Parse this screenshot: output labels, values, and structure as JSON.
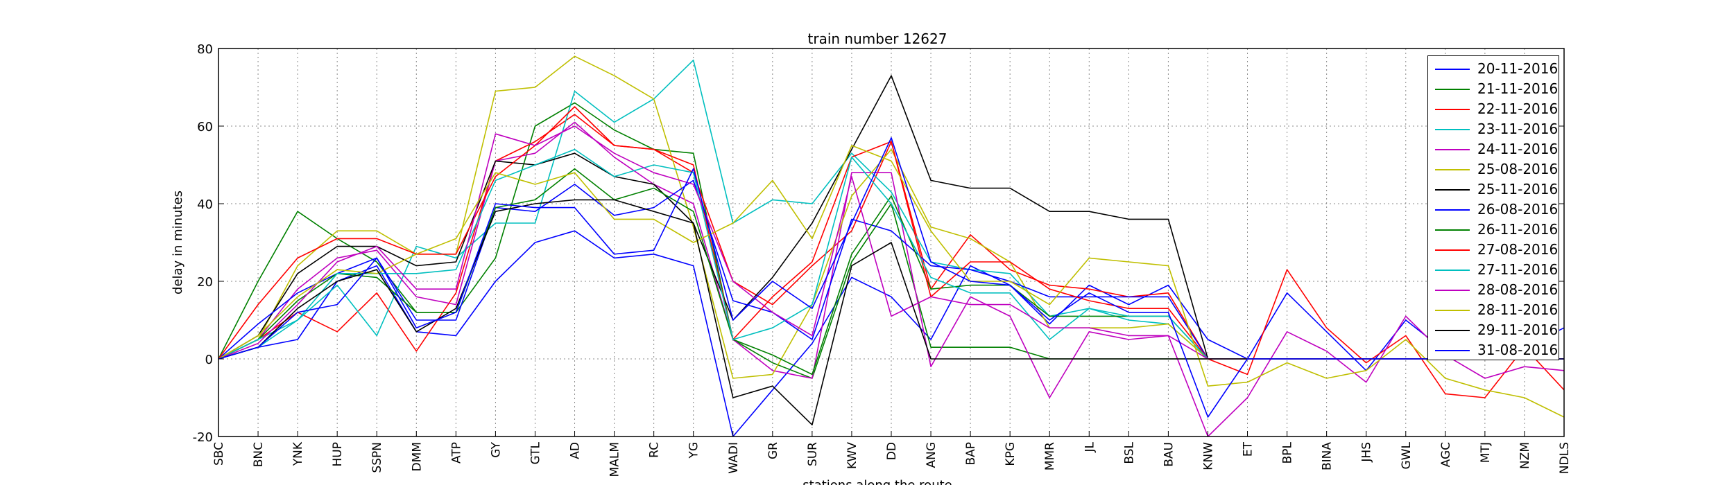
{
  "chart_data": {
    "type": "line",
    "title": "train number 12627",
    "xlabel": "stations along the route",
    "ylabel": "delay in minutes",
    "ylim": [
      -20,
      80
    ],
    "yticks": [
      -20,
      0,
      20,
      40,
      60,
      80
    ],
    "grid": true,
    "legend_position": "top-right",
    "categories": [
      "SBC",
      "BNC",
      "YNK",
      "HUP",
      "SSPN",
      "DMM",
      "ATP",
      "GY",
      "GTL",
      "AD",
      "MALM",
      "RC",
      "YG",
      "WADI",
      "GR",
      "SUR",
      "KWV",
      "DD",
      "ANG",
      "BAP",
      "KPG",
      "MMR",
      "JL",
      "BSL",
      "BAU",
      "KNW",
      "ET",
      "BPL",
      "BINA",
      "JHS",
      "GWL",
      "AGC",
      "MTJ",
      "NZM",
      "NDLS"
    ],
    "series": [
      {
        "name": "20-11-2016",
        "color": "#0000ff",
        "values": [
          0,
          3,
          5,
          20,
          24,
          7,
          6,
          20,
          30,
          33,
          26,
          27,
          24,
          -20,
          -8,
          4,
          21,
          16,
          5,
          24,
          19,
          9,
          19,
          14,
          19,
          5,
          0,
          17,
          7,
          -3,
          10,
          2,
          3,
          3,
          8
        ]
      },
      {
        "name": "21-11-2016",
        "color": "#008000",
        "values": [
          0,
          20,
          38,
          31,
          25,
          12,
          12,
          26,
          60,
          66,
          59,
          54,
          53,
          5,
          -1,
          -5,
          25,
          40,
          3,
          3,
          3,
          0,
          0,
          0,
          0,
          0,
          0,
          0,
          0,
          0,
          0,
          0,
          0,
          0,
          0
        ]
      },
      {
        "name": "22-11-2016",
        "color": "#ff0000",
        "values": [
          0,
          5,
          12,
          7,
          17,
          2,
          17,
          51,
          56,
          63,
          55,
          54,
          48,
          20,
          14,
          24,
          33,
          56,
          18,
          32,
          23,
          19,
          18,
          16,
          17,
          0,
          -4,
          23,
          8,
          -1,
          6,
          -9,
          -10,
          3,
          -8
        ]
      },
      {
        "name": "23-11-2016",
        "color": "#00bfbf",
        "values": [
          0,
          3,
          10,
          19,
          6,
          29,
          26,
          35,
          35,
          69,
          61,
          67,
          77,
          35,
          41,
          40,
          53,
          43,
          25,
          23,
          22,
          11,
          13,
          10,
          9,
          0,
          0,
          0,
          0,
          0,
          0,
          0,
          0,
          0,
          0
        ]
      },
      {
        "name": "24-11-2016",
        "color": "#bf00bf",
        "values": [
          0,
          5,
          18,
          26,
          28,
          16,
          14,
          51,
          53,
          61,
          52,
          45,
          40,
          5,
          -3,
          -5,
          48,
          48,
          -2,
          16,
          11,
          -10,
          7,
          5,
          6,
          -20,
          -10,
          7,
          2,
          -6,
          11,
          1,
          -5,
          -2,
          -3
        ]
      },
      {
        "name": "25-08-2016",
        "color": "#bfbf00",
        "values": [
          0,
          5,
          24,
          33,
          33,
          27,
          27,
          69,
          70,
          78,
          73,
          67,
          34,
          -5,
          -4,
          14,
          42,
          54,
          34,
          31,
          25,
          8,
          8,
          8,
          9,
          0,
          0,
          0,
          0,
          0,
          0,
          0,
          0,
          0,
          0
        ]
      },
      {
        "name": "25-11-2016",
        "color": "#000000",
        "values": [
          0,
          6,
          22,
          29,
          29,
          24,
          25,
          51,
          50,
          53,
          47,
          45,
          35,
          10,
          21,
          35,
          54,
          73,
          46,
          44,
          44,
          38,
          38,
          36,
          36,
          0,
          0,
          0,
          0,
          0,
          0,
          0,
          0,
          0,
          0
        ]
      },
      {
        "name": "26-08-2016",
        "color": "#0000ff",
        "values": [
          0,
          9,
          17,
          22,
          26,
          10,
          10,
          39,
          38,
          45,
          37,
          39,
          46,
          15,
          12,
          5,
          36,
          33,
          24,
          23,
          20,
          16,
          16,
          16,
          16,
          0,
          0,
          0,
          0,
          0,
          0,
          0,
          0,
          0,
          0
        ]
      },
      {
        "name": "26-11-2016",
        "color": "#008000",
        "values": [
          0,
          5,
          15,
          22,
          21,
          12,
          12,
          39,
          41,
          49,
          41,
          44,
          38,
          5,
          1,
          -4,
          27,
          42,
          18,
          19,
          19,
          11,
          11,
          11,
          11,
          0,
          0,
          0,
          0,
          0,
          0,
          0,
          0,
          0,
          0
        ]
      },
      {
        "name": "27-08-2016",
        "color": "#ff0000",
        "values": [
          0,
          14,
          26,
          31,
          31,
          27,
          27,
          47,
          55,
          65,
          55,
          54,
          50,
          5,
          16,
          25,
          52,
          56,
          16,
          25,
          25,
          18,
          15,
          13,
          13,
          0,
          0,
          0,
          0,
          0,
          0,
          0,
          0,
          0,
          0
        ]
      },
      {
        "name": "27-11-2016",
        "color": "#00bfbf",
        "values": [
          0,
          5,
          10,
          22,
          22,
          22,
          23,
          46,
          50,
          54,
          47,
          50,
          48,
          5,
          8,
          14,
          52,
          40,
          21,
          17,
          17,
          5,
          13,
          11,
          11,
          0,
          0,
          0,
          0,
          0,
          0,
          0,
          0,
          0,
          0
        ]
      },
      {
        "name": "28-08-2016",
        "color": "#bf00bf",
        "values": [
          0,
          4,
          14,
          25,
          29,
          18,
          18,
          58,
          55,
          60,
          53,
          48,
          45,
          20,
          12,
          6,
          47,
          11,
          16,
          14,
          14,
          8,
          8,
          6,
          6,
          0,
          0,
          0,
          0,
          0,
          0,
          0,
          0,
          0,
          0
        ]
      },
      {
        "name": "28-11-2016",
        "color": "#bfbf00",
        "values": [
          0,
          6,
          16,
          23,
          22,
          27,
          31,
          48,
          45,
          48,
          36,
          36,
          30,
          35,
          46,
          31,
          55,
          51,
          33,
          20,
          20,
          14,
          26,
          25,
          24,
          -7,
          -6,
          -1,
          -5,
          -3,
          5,
          -5,
          -8,
          -10,
          -15
        ]
      },
      {
        "name": "29-11-2016",
        "color": "#000000",
        "values": [
          0,
          3,
          13,
          20,
          23,
          7,
          13,
          38,
          40,
          41,
          41,
          38,
          35,
          -10,
          -7,
          -17,
          24,
          30,
          0,
          0,
          0,
          0,
          0,
          0,
          0,
          0,
          0,
          0,
          0,
          0,
          0,
          0,
          0,
          0,
          0
        ]
      },
      {
        "name": "31-08-2016",
        "color": "#0000ff",
        "values": [
          0,
          3,
          12,
          14,
          26,
          8,
          12,
          40,
          39,
          39,
          27,
          28,
          49,
          10,
          20,
          13,
          35,
          57,
          25,
          20,
          19,
          10,
          17,
          12,
          12,
          -15,
          0,
          0,
          0,
          0,
          0,
          0,
          0,
          0,
          0
        ]
      }
    ]
  }
}
